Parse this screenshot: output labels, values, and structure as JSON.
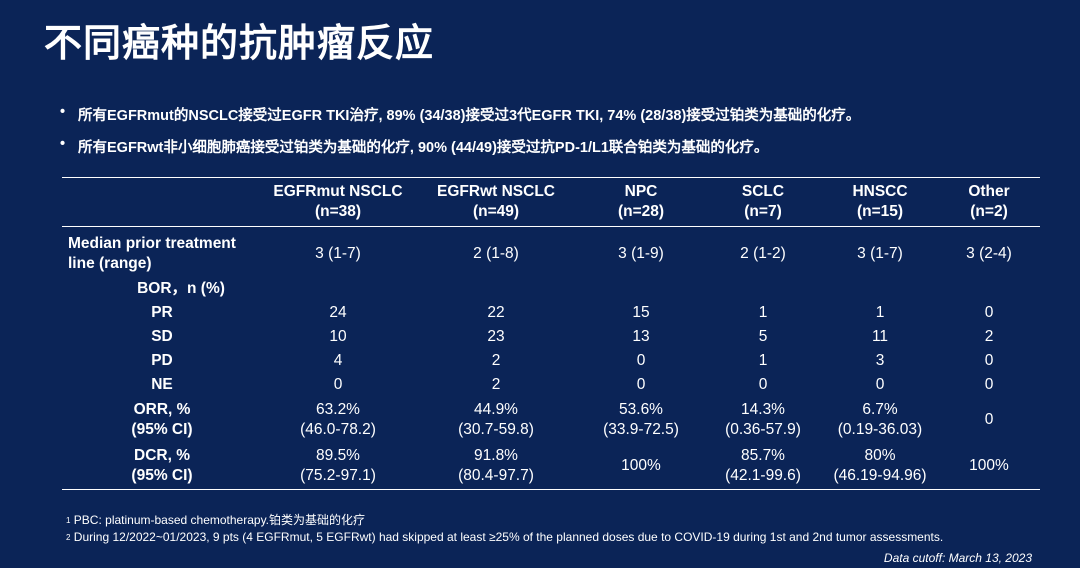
{
  "title": "不同癌种的抗肿瘤反应",
  "bullets": [
    "所有EGFRmut的NSCLC接受过EGFR TKI治疗, 89% (34/38)接受过3代EGFR TKI, 74% (28/38)接受过铂类为基础的化疗。",
    "所有EGFRwt非小细胞肺癌接受过铂类为基础的化疗, 90% (44/49)接受过抗PD-1/L1联合铂类为基础的化疗。"
  ],
  "bullet_glyph": "•",
  "table": {
    "headers": [
      {
        "l1": "",
        "l2": ""
      },
      {
        "l1": "EGFRmut NSCLC",
        "l2": "(n=38)"
      },
      {
        "l1": "EGFRwt NSCLC",
        "l2": "(n=49)"
      },
      {
        "l1": "NPC",
        "l2": "(n=28)"
      },
      {
        "l1": "SCLC",
        "l2": "(n=7)"
      },
      {
        "l1": "HNSCC",
        "l2": "(n=15)"
      },
      {
        "l1": "Other",
        "l2": "(n=2)"
      }
    ],
    "rows": [
      {
        "label_l1": "Median prior treatment",
        "label_l2": "line (range)",
        "cells": [
          {
            "l1": "3 (1-7)"
          },
          {
            "l1": "2 (1-8)"
          },
          {
            "l1": "3 (1-9)"
          },
          {
            "l1": "2 (1-2)"
          },
          {
            "l1": "3 (1-7)"
          },
          {
            "l1": "3 (2-4)"
          }
        ]
      },
      {
        "label_l1": "BOR，n (%)",
        "cells": [
          {
            "l1": ""
          },
          {
            "l1": ""
          },
          {
            "l1": ""
          },
          {
            "l1": ""
          },
          {
            "l1": ""
          },
          {
            "l1": ""
          }
        ]
      },
      {
        "label_l1": "PR",
        "cells": [
          {
            "l1": "24"
          },
          {
            "l1": "22"
          },
          {
            "l1": "15"
          },
          {
            "l1": "1"
          },
          {
            "l1": "1"
          },
          {
            "l1": "0"
          }
        ]
      },
      {
        "label_l1": "SD",
        "cells": [
          {
            "l1": "10"
          },
          {
            "l1": "23"
          },
          {
            "l1": "13"
          },
          {
            "l1": "5"
          },
          {
            "l1": "11"
          },
          {
            "l1": "2"
          }
        ]
      },
      {
        "label_l1": "PD",
        "cells": [
          {
            "l1": "4"
          },
          {
            "l1": "2"
          },
          {
            "l1": "0"
          },
          {
            "l1": "1"
          },
          {
            "l1": "3"
          },
          {
            "l1": "0"
          }
        ]
      },
      {
        "label_l1": "NE",
        "cells": [
          {
            "l1": "0"
          },
          {
            "l1": "2"
          },
          {
            "l1": "0"
          },
          {
            "l1": "0"
          },
          {
            "l1": "0"
          },
          {
            "l1": "0"
          }
        ]
      },
      {
        "label_l1": "ORR, %",
        "label_l2": "(95% CI)",
        "cells": [
          {
            "l1": "63.2%",
            "l2": "(46.0-78.2)"
          },
          {
            "l1": "44.9%",
            "l2": "(30.7-59.8)"
          },
          {
            "l1": "53.6%",
            "l2": "(33.9-72.5)"
          },
          {
            "l1": "14.3%",
            "l2": "(0.36-57.9)"
          },
          {
            "l1": "6.7%",
            "l2": "(0.19-36.03)"
          },
          {
            "l1": "0"
          }
        ]
      },
      {
        "label_l1": "DCR, %",
        "label_l2": "(95% CI)",
        "cells": [
          {
            "l1": "89.5%",
            "l2": "(75.2-97.1)"
          },
          {
            "l1": "91.8%",
            "l2": "(80.4-97.7)"
          },
          {
            "l1": "100%"
          },
          {
            "l1": "85.7%",
            "l2": "(42.1-99.6)"
          },
          {
            "l1": "80%",
            "l2": "(46.19-94.96)"
          },
          {
            "l1": "100%"
          }
        ]
      }
    ]
  },
  "footnotes": [
    {
      "marker": "1",
      "text": "PBC: platinum-based chemotherapy.铂类为基础的化疗"
    },
    {
      "marker": "2",
      "text": "During 12/2022~01/2023, 9 pts (4 EGFRmut, 5 EGFRwt) had skipped at least ≥25% of the planned doses due to COVID-19 during 1st and 2nd tumor assessments."
    }
  ],
  "data_cutoff": "Data cutoff: March 13, 2023",
  "colors": {
    "background": "#0b2457",
    "text": "#ffffff"
  }
}
